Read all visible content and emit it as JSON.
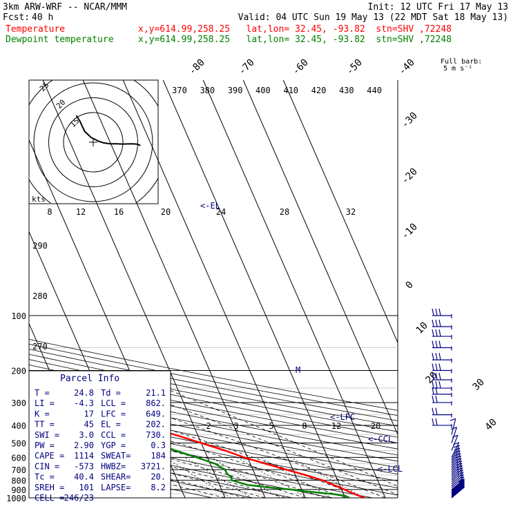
{
  "header": {
    "model": "3km ARW-WRF -- NCAR/MMM",
    "init": "Init: 12 UTC Fri 17 May 13",
    "fcst_label": "Fcst:",
    "fcst_value": "40 h",
    "valid": "Valid: 04 UTC Sun 19 May 13 (22 MDT Sat 18 May 13)",
    "temperature_label": "Temperature",
    "dewpoint_label": "Dewpoint temperature",
    "coords": "x,y=614.99,258.25   lat,lon= 32.45, -93.82  stn=SHV ,72248"
  },
  "colors": {
    "temperature": "#ff0000",
    "dewpoint": "#008000",
    "wind": "#000080",
    "grid": "#000000"
  },
  "barb_legend": {
    "line1": "Full barb:",
    "line2": "5 m s⁻¹"
  },
  "hodograph": {
    "units": "kts",
    "rings": [
      "15",
      "20",
      "25"
    ]
  },
  "parcel_info": {
    "title": "Parcel Info",
    "rows": [
      [
        "T =",
        "24.8",
        "Td =",
        "21.1"
      ],
      [
        "LI =",
        "-4.3",
        "LCL =",
        "862."
      ],
      [
        "K =",
        "17",
        "LFC =",
        "649."
      ],
      [
        "TT =",
        "45",
        "EL =",
        "202."
      ],
      [
        "SWI =",
        "3.0",
        "CCL =",
        "730."
      ],
      [
        "PW =",
        "2.90",
        "YGP =",
        "0.3"
      ],
      [
        "CAPE =",
        "1114",
        "SWEAT=",
        "184"
      ],
      [
        "CIN =",
        "-573",
        "HWBZ=",
        "3721."
      ],
      [
        "Tc =",
        "40.4",
        "SHEAR=",
        "20."
      ],
      [
        "SREH =",
        "101",
        "LAPSE=",
        "8.2"
      ],
      [
        "CELL =",
        "246/23",
        "",
        ""
      ]
    ]
  },
  "chart_data": {
    "type": "line",
    "title": "",
    "xlabel": "",
    "ylabel": "",
    "pressure_ticks": [
      "100",
      "200",
      "300",
      "400",
      "500",
      "600",
      "700",
      "800",
      "900",
      "1000"
    ],
    "temperature_ticks": [
      "-80",
      "-70",
      "-60",
      "-50",
      "-40",
      "-30",
      "-20",
      "-10",
      "0",
      "10",
      "20",
      "30",
      "40"
    ],
    "theta_e_ticks": [
      "370",
      "380",
      "390",
      "400",
      "410",
      "420",
      "430",
      "440"
    ],
    "mixing_ratio_ticks_upper": [
      "8",
      "12",
      "16",
      "20",
      "24",
      "28",
      "32"
    ],
    "mixing_ratio_ticks_lower": [
      "2",
      "3",
      "5",
      "8",
      "12",
      "20"
    ],
    "theta_ticks": [
      "290",
      "280",
      "270"
    ],
    "level_markers": [
      "<-EL",
      "<-LFC",
      "<-CCL",
      "<-LCL",
      "M"
    ],
    "series": [
      {
        "name": "Temperature",
        "pressure": [
          1000,
          960,
          920,
          880,
          850,
          800,
          750,
          700,
          650,
          600,
          550,
          500,
          450,
          400,
          350,
          300,
          270,
          250,
          220,
          200,
          185,
          170,
          150,
          130,
          115,
          100
        ],
        "values": [
          24.8,
          23.5,
          22.3,
          21.4,
          20.3,
          18.7,
          15.8,
          12.3,
          8.6,
          4.9,
          1.8,
          -2.3,
          -6.9,
          -12.0,
          -17.8,
          -25.6,
          -31.0,
          -35.5,
          -42.4,
          -47.4,
          -53.0,
          -56.5,
          -57.5,
          -59.0,
          -61.5,
          -63.5
        ]
      },
      {
        "name": "Dewpoint temperature",
        "pressure": [
          1000,
          975,
          950,
          920,
          900,
          880,
          850,
          800,
          770,
          740,
          700,
          650,
          600,
          550,
          520,
          500,
          470,
          440,
          400,
          370,
          330,
          300,
          290,
          270,
          250,
          235,
          220,
          200,
          185,
          170,
          150,
          130,
          115,
          100
        ],
        "values": [
          21.1,
          20.5,
          17.5,
          11.5,
          8.5,
          4.0,
          -1.0,
          -4.0,
          -3.2,
          -3.5,
          -3.0,
          -4.0,
          -7.0,
          -10.5,
          -12.5,
          -14.7,
          -16.0,
          -20.5,
          -26.5,
          -30.5,
          -36.0,
          -46.5,
          -49.0,
          -52.5,
          -53.8,
          -53.5,
          -58.0,
          -63.5,
          -68.5,
          -71.5,
          -74.0,
          -74.5,
          -78.5,
          -82.5
        ]
      }
    ],
    "wind_pressure_levels": [
      1000,
      990,
      980,
      970,
      960,
      950,
      940,
      930,
      920,
      910,
      900,
      880,
      860,
      840,
      820,
      800,
      780,
      760,
      740,
      720,
      700,
      680,
      660,
      640,
      620,
      600,
      550,
      500,
      450,
      400,
      350,
      300,
      270,
      250,
      225,
      200,
      175,
      150,
      130,
      115,
      100
    ],
    "hodograph_trace": {
      "u_kts": [
        -5.7,
        -4.5,
        -2.9,
        -0.7,
        1.9,
        3.5,
        5.6,
        7.9,
        9.8,
        12.9,
        14.6,
        15.9
      ],
      "v_kts": [
        9.0,
        7.1,
        3.7,
        1.6,
        0.3,
        -0.2,
        -0.5,
        -0.5,
        -0.6,
        -0.5,
        -0.6,
        -1.1
      ]
    }
  }
}
